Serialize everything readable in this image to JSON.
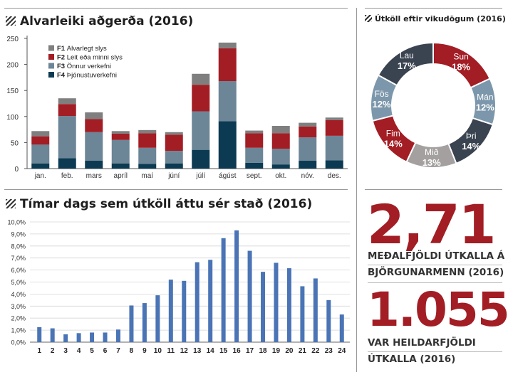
{
  "colors": {
    "f1": "#7f7f7f",
    "f2": "#a31d24",
    "f3": "#6c8597",
    "f4": "#0b3a52",
    "donut_dark": "#3a4350",
    "donut_red": "#a31d24",
    "donut_blue": "#7c97ab",
    "donut_gray": "#a5a0a0",
    "hour_bar": "#4a74b5",
    "big_number": "#a31d24"
  },
  "monthly": {
    "title": "Alvarleiki aðgerða (2016)",
    "chart_data": {
      "type": "bar",
      "stacked": true,
      "categories": [
        "jan.",
        "feb.",
        "mars",
        "apríl",
        "maí",
        "júní",
        "júlí",
        "ágúst",
        "sept.",
        "okt.",
        "nóv.",
        "des."
      ],
      "series": [
        {
          "name": "Þjónustuverkefni",
          "code": "F4",
          "values": [
            10,
            20,
            15,
            10,
            9,
            10,
            36,
            91,
            11,
            8,
            15,
            16
          ]
        },
        {
          "name": "Önnur verkefni",
          "code": "F3",
          "values": [
            36,
            81,
            55,
            45,
            31,
            24,
            74,
            77,
            29,
            30,
            45,
            47
          ]
        },
        {
          "name": "Leit eða minni slys",
          "code": "F2",
          "values": [
            16,
            23,
            25,
            12,
            28,
            31,
            51,
            63,
            28,
            30,
            21,
            30
          ]
        },
        {
          "name": "Alvarlegt slys",
          "code": "F1",
          "values": [
            10,
            11,
            13,
            5,
            6,
            5,
            21,
            11,
            5,
            14,
            7,
            5
          ]
        }
      ],
      "legend_order": [
        "F1",
        "F2",
        "F3",
        "F4"
      ],
      "ylim": [
        0,
        250
      ],
      "yticks": [
        0,
        50,
        100,
        150,
        200,
        250
      ],
      "grid": false
    }
  },
  "weekday": {
    "title": "Útköll eftir vikudögum (2016)",
    "chart_data": {
      "type": "pie",
      "donut": true,
      "slices": [
        {
          "label": "Sun",
          "value": 18,
          "display": "18%",
          "color_key": "donut_red"
        },
        {
          "label": "Mán",
          "value": 12,
          "display": "12%",
          "color_key": "donut_blue"
        },
        {
          "label": "Þri",
          "value": 14,
          "display": "14%",
          "color_key": "donut_dark"
        },
        {
          "label": "Mið",
          "value": 13,
          "display": "13%",
          "color_key": "donut_gray"
        },
        {
          "label": "Fim",
          "value": 14,
          "display": "14%",
          "color_key": "donut_red"
        },
        {
          "label": "Fös",
          "value": 12,
          "display": "12%",
          "color_key": "donut_blue"
        },
        {
          "label": "Lau",
          "value": 17,
          "display": "17%",
          "color_key": "donut_dark"
        }
      ]
    }
  },
  "hourly": {
    "title": "Tímar dags sem útköll áttu sér stað (2016)",
    "chart_data": {
      "type": "bar",
      "categories": [
        "1",
        "2",
        "3",
        "4",
        "5",
        "6",
        "7",
        "8",
        "9",
        "10",
        "11",
        "12",
        "13",
        "14",
        "15",
        "16",
        "17",
        "18",
        "19",
        "20",
        "21",
        "22",
        "23",
        "24"
      ],
      "values": [
        1.25,
        1.15,
        0.65,
        0.75,
        0.8,
        0.8,
        1.05,
        3.05,
        3.25,
        3.9,
        5.2,
        5.1,
        6.65,
        6.85,
        8.65,
        9.3,
        7.6,
        5.85,
        6.6,
        6.15,
        4.65,
        5.3,
        3.5,
        2.3
      ],
      "ylim": [
        0,
        10
      ],
      "yticks": [
        "0,0%",
        "1,0%",
        "2,0%",
        "3,0%",
        "4,0%",
        "5,0%",
        "6,0%",
        "7,0%",
        "8,0%",
        "9,0%",
        "10,0%"
      ],
      "grid": true
    }
  },
  "stats": {
    "avg_value": "2,71",
    "avg_caption_1": "MEÐALFJÖLDI ÚTKALLA Á",
    "avg_caption_2": "BJÖRGUNARMENN (2016)",
    "total_value": "1.055",
    "total_caption_1": "VAR HEILDARFJÖLDI",
    "total_caption_2": "ÚTKALLA (2016)"
  }
}
